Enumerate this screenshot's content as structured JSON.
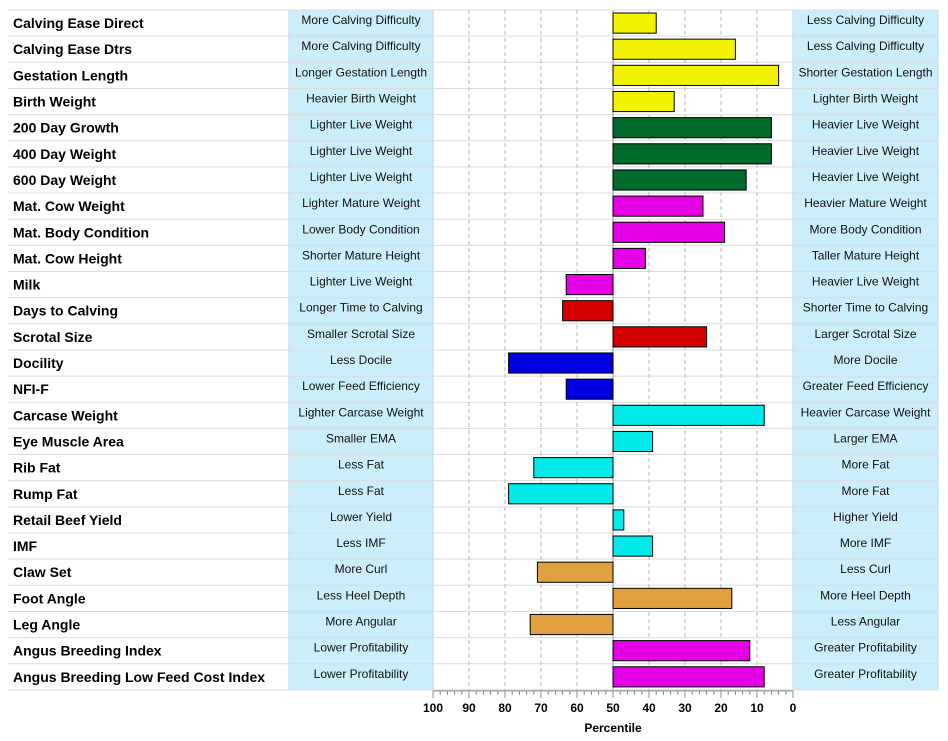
{
  "chart_data": {
    "type": "bar",
    "xlabel": "Percentile",
    "xlim": [
      100,
      0
    ],
    "xticks": [
      100,
      90,
      80,
      70,
      60,
      50,
      40,
      30,
      20,
      10,
      0
    ],
    "baseline": 50,
    "grid": true,
    "rows": [
      {
        "trait": "Calving Ease Direct",
        "low": "More Calving Difficulty",
        "high": "Less Calving Difficulty",
        "value": 38,
        "color": "#f2f200"
      },
      {
        "trait": "Calving Ease Dtrs",
        "low": "More Calving Difficulty",
        "high": "Less Calving Difficulty",
        "value": 16,
        "color": "#f2f200"
      },
      {
        "trait": "Gestation Length",
        "low": "Longer Gestation Length",
        "high": "Shorter Gestation Length",
        "value": 4,
        "color": "#f2f200"
      },
      {
        "trait": "Birth Weight",
        "low": "Heavier Birth Weight",
        "high": "Lighter Birth Weight",
        "value": 33,
        "color": "#f2f200"
      },
      {
        "trait": "200 Day Growth",
        "low": "Lighter Live Weight",
        "high": "Heavier Live Weight",
        "value": 6,
        "color": "#006b2a"
      },
      {
        "trait": "400 Day Weight",
        "low": "Lighter Live Weight",
        "high": "Heavier Live Weight",
        "value": 6,
        "color": "#006b2a"
      },
      {
        "trait": "600 Day Weight",
        "low": "Lighter Live Weight",
        "high": "Heavier Live Weight",
        "value": 13,
        "color": "#006b2a"
      },
      {
        "trait": "Mat. Cow Weight",
        "low": "Lighter Mature Weight",
        "high": "Heavier Mature Weight",
        "value": 25,
        "color": "#e600e6"
      },
      {
        "trait": "Mat. Body Condition",
        "low": "Lower Body Condition",
        "high": "More Body Condition",
        "value": 19,
        "color": "#e600e6"
      },
      {
        "trait": "Mat. Cow Height",
        "low": "Shorter Mature Height",
        "high": "Taller Mature Height",
        "value": 41,
        "color": "#e600e6"
      },
      {
        "trait": "Milk",
        "low": "Lighter Live Weight",
        "high": "Heavier Live Weight",
        "value": 63,
        "color": "#e600e6"
      },
      {
        "trait": "Days to Calving",
        "low": "Longer Time to Calving",
        "high": "Shorter Time to Calving",
        "value": 64,
        "color": "#d40000"
      },
      {
        "trait": "Scrotal Size",
        "low": "Smaller Scrotal Size",
        "high": "Larger Scrotal Size",
        "value": 24,
        "color": "#d40000"
      },
      {
        "trait": "Docility",
        "low": "Less Docile",
        "high": "More Docile",
        "value": 79,
        "color": "#0000e0"
      },
      {
        "trait": "NFI-F",
        "low": "Lower Feed Efficiency",
        "high": "Greater Feed Efficiency",
        "value": 63,
        "color": "#0000e0"
      },
      {
        "trait": "Carcase Weight",
        "low": "Lighter Carcase Weight",
        "high": "Heavier Carcase Weight",
        "value": 8,
        "color": "#00eaea"
      },
      {
        "trait": "Eye Muscle Area",
        "low": "Smaller EMA",
        "high": "Larger EMA",
        "value": 39,
        "color": "#00eaea"
      },
      {
        "trait": "Rib Fat",
        "low": "Less Fat",
        "high": "More Fat",
        "value": 72,
        "color": "#00eaea"
      },
      {
        "trait": "Rump Fat",
        "low": "Less Fat",
        "high": "More Fat",
        "value": 79,
        "color": "#00eaea"
      },
      {
        "trait": "Retail Beef Yield",
        "low": "Lower Yield",
        "high": "Higher Yield",
        "value": 47,
        "color": "#00eaea"
      },
      {
        "trait": "IMF",
        "low": "Less IMF",
        "high": "More IMF",
        "value": 39,
        "color": "#00eaea"
      },
      {
        "trait": "Claw Set",
        "low": "More Curl",
        "high": "Less Curl",
        "value": 71,
        "color": "#e0a040"
      },
      {
        "trait": "Foot Angle",
        "low": "Less Heel Depth",
        "high": "More Heel Depth",
        "value": 17,
        "color": "#e0a040"
      },
      {
        "trait": "Leg Angle",
        "low": "More Angular",
        "high": "Less Angular",
        "value": 73,
        "color": "#e0a040"
      },
      {
        "trait": "Angus Breeding Index",
        "low": "Lower Profitability",
        "high": "Greater Profitability",
        "value": 12,
        "color": "#e600e6"
      },
      {
        "trait": "Angus Breeding Low Feed Cost Index",
        "low": "Lower Profitability",
        "high": "Greater Profitability",
        "value": 8,
        "color": "#e600e6"
      }
    ]
  }
}
